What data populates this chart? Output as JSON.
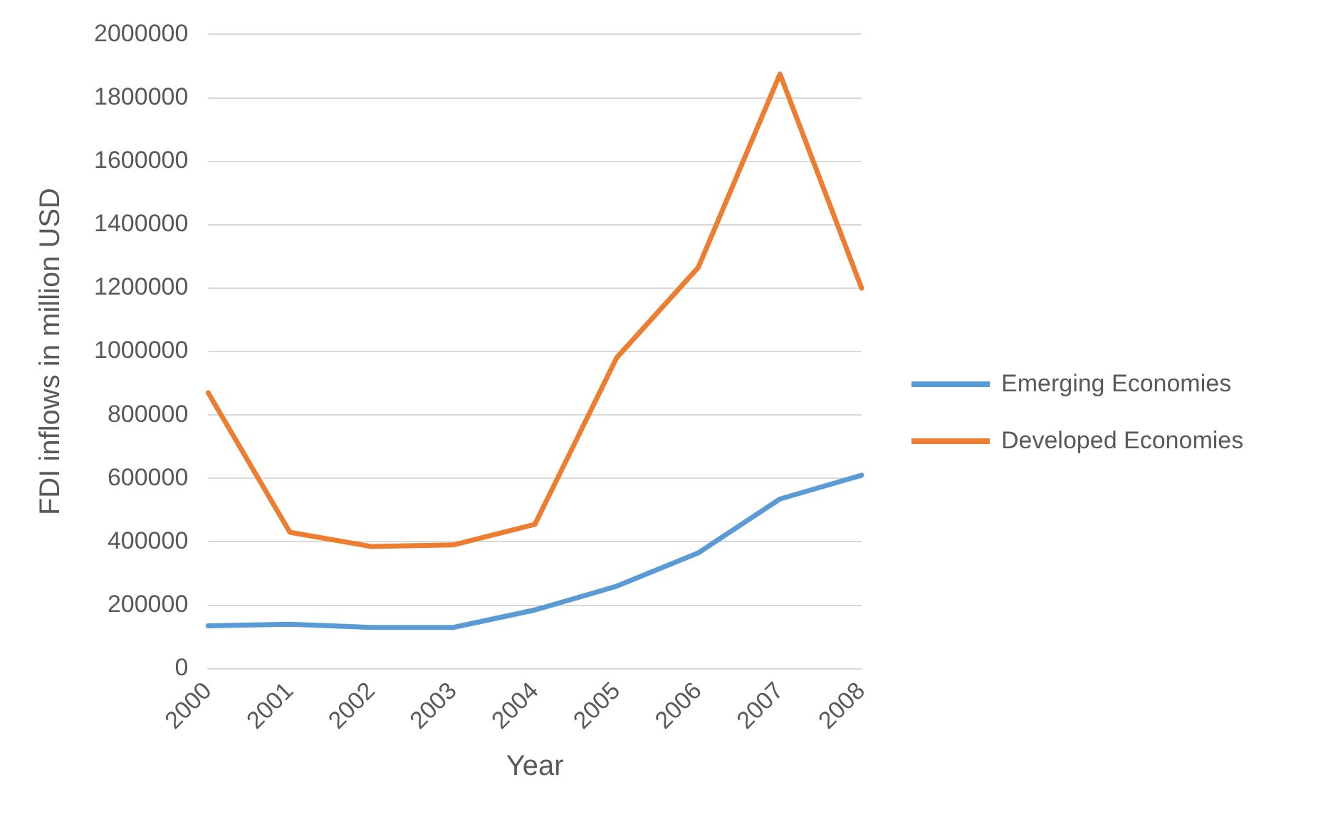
{
  "chart_data": {
    "type": "line",
    "xlabel": "Year",
    "ylabel": "FDI inflows in million USD",
    "categories": [
      "2000",
      "2001",
      "2002",
      "2003",
      "2004",
      "2005",
      "2006",
      "2007",
      "2008"
    ],
    "series": [
      {
        "name": "Emerging Economies",
        "color": "#5b9bd5",
        "values": [
          135000,
          140000,
          130000,
          130000,
          185000,
          260000,
          365000,
          535000,
          610000
        ]
      },
      {
        "name": "Developed Economies",
        "color": "#ed7d31",
        "values": [
          870000,
          430000,
          385000,
          390000,
          455000,
          980000,
          1265000,
          1875000,
          1200000
        ]
      }
    ],
    "ylim": [
      0,
      2000000
    ],
    "yticks": [
      0,
      200000,
      400000,
      600000,
      800000,
      1000000,
      1200000,
      1400000,
      1600000,
      1800000,
      2000000
    ],
    "grid": "y",
    "legend": "right",
    "marker": "none",
    "line_style": "solid"
  }
}
